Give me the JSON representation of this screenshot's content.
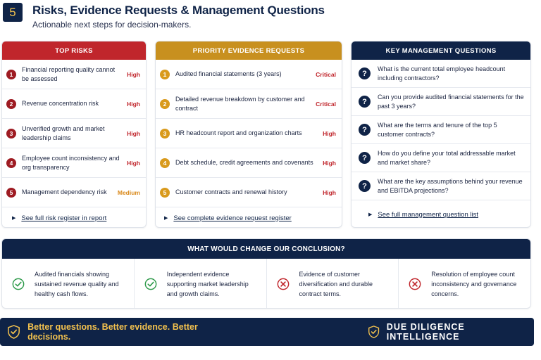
{
  "header": {
    "number": "5",
    "title": "Risks, Evidence Requests & Management Questions",
    "subtitle": "Actionable next steps for decision-makers."
  },
  "risks": {
    "title": "TOP RISKS",
    "items": [
      {
        "num": "1",
        "text": "Financial reporting quality cannot be assessed",
        "level": "High"
      },
      {
        "num": "2",
        "text": "Revenue concentration risk",
        "level": "High"
      },
      {
        "num": "3",
        "text": "Unverified growth and market leadership claims",
        "level": "High"
      },
      {
        "num": "4",
        "text": "Employee count inconsistency and org transparency",
        "level": "High"
      },
      {
        "num": "5",
        "text": "Management dependency risk",
        "level": "Medium"
      }
    ],
    "link": "See full risk register in report"
  },
  "evidence": {
    "title": "PRIORITY EVIDENCE REQUESTS",
    "items": [
      {
        "num": "1",
        "text": "Audited financial statements (3 years)",
        "level": "Critical"
      },
      {
        "num": "2",
        "text": "Detailed revenue breakdown by customer and contract",
        "level": "Critical"
      },
      {
        "num": "3",
        "text": "HR headcount report and organization charts",
        "level": "High"
      },
      {
        "num": "4",
        "text": "Debt schedule, credit agreements and covenants",
        "level": "High"
      },
      {
        "num": "5",
        "text": "Customer contracts and renewal history",
        "level": "High"
      }
    ],
    "link": "See complete evidence request register"
  },
  "questions": {
    "title": "KEY MANAGEMENT QUESTIONS",
    "items": [
      {
        "icon": "?",
        "text": "What is the current total employee headcount including contractors?"
      },
      {
        "icon": "?",
        "text": "Can you provide audited financial statements for the past 3 years?"
      },
      {
        "icon": "?",
        "text": "What are the terms and tenure of the top 5 customer contracts?"
      },
      {
        "icon": "?",
        "text": "How do you define your total addressable market and market share?"
      },
      {
        "icon": "?",
        "text": "What are the key assumptions behind your revenue and EBITDA projections?"
      }
    ],
    "link": "See full management question list"
  },
  "conclusion": {
    "title": "WHAT WOULD CHANGE OUR CONCLUSION?",
    "items": [
      {
        "icon": "check-circle-icon",
        "text": "Audited financials showing sustained revenue quality and healthy cash flows."
      },
      {
        "icon": "check-circle-icon",
        "text": "Independent evidence supporting market leadership and growth claims."
      },
      {
        "icon": "x-circle-icon",
        "text": "Evidence of customer diversification and durable contract terms."
      },
      {
        "icon": "x-circle-icon",
        "text": "Resolution of employee count inconsistency and governance concerns."
      }
    ]
  },
  "footer": {
    "tagline": "Better questions. Better evidence. Better decisions.",
    "brand": "DUE DILIGENCE INTELLIGENCE"
  },
  "colors": {
    "navy": "#0f2347",
    "red": "#c0262c",
    "gold": "#c8901f",
    "green": "#2e9a4a",
    "medium": "#d9891b"
  }
}
